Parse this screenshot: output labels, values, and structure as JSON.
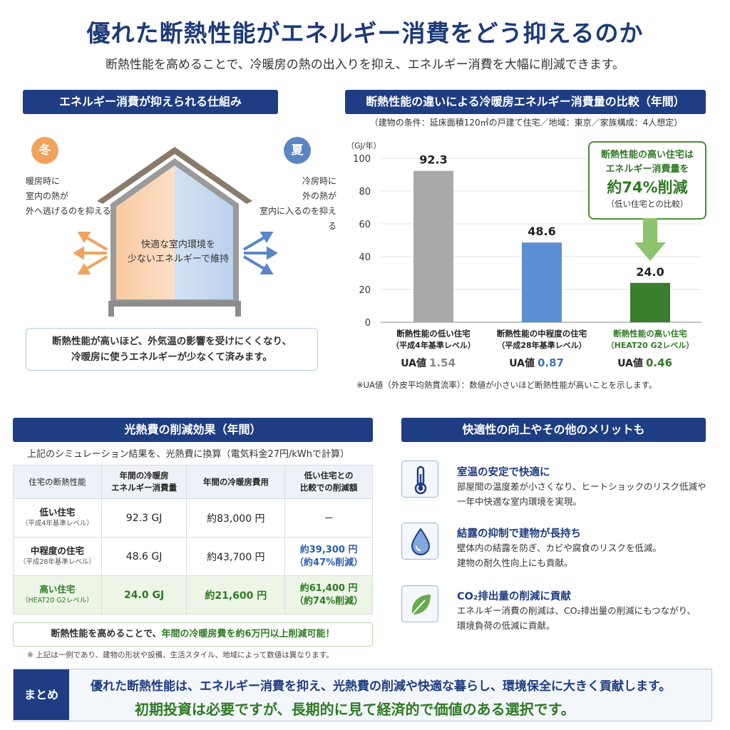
{
  "header": {
    "title": "優れた断熱性能がエネルギー消費をどう抑えるのか",
    "subtitle": "断熱性能を高めることで、冷暖房の熱の出入りを抑え、エネルギー消費を大幅に削減できます。"
  },
  "mechanism": {
    "heading": "エネルギー消費が抑えられる仕組み",
    "winter_badge": "冬",
    "summer_badge": "夏",
    "winter_note": [
      "暖房時に",
      "室内の熱が",
      "外へ逃げるのを抑える"
    ],
    "summer_note": [
      "冷房時に",
      "外の熱が",
      "室内に入るのを抑える"
    ],
    "house_text": [
      "快適な室内環境を",
      "少ないエネルギーで維持"
    ],
    "info": [
      "断熱性能が高いほど、外気温の影響を受けにくくなり、",
      "冷暖房に使うエネルギーが少なくて済みます。"
    ],
    "colors": {
      "winter": "#f0a35e",
      "summer": "#5a86c5"
    }
  },
  "comparison": {
    "heading": "断熱性能の違いによる冷暖房エネルギー消費量の比較（年間）",
    "conditions": "（建物の条件：延床面積120㎡の戸建て住宅／地域：東京／家族構成：4人想定）",
    "callout": {
      "line1": "断熱性能の高い住宅は",
      "line2": "エネルギー消費量を",
      "big": "約74%削減",
      "small": "（低い住宅との比較）"
    },
    "note": "※UA値（外皮平均熱貫流率）：数値が小さいほど断熱性能が高いことを示します。"
  },
  "chart_data": {
    "type": "bar",
    "ylabel": "（GJ/年）",
    "ylim": [
      0,
      100
    ],
    "yticks": [
      0,
      20,
      40,
      60,
      80,
      100
    ],
    "categories": [
      {
        "line1": "断熱性能の低い住宅",
        "line2": "（平成4年基準レベル）",
        "ua_label": "UA値",
        "ua": "1.54"
      },
      {
        "line1": "断熱性能の中程度の住宅",
        "line2": "（平成28年基準レベル）",
        "ua_label": "UA値",
        "ua": "0.87"
      },
      {
        "line1": "断熱性能の高い住宅",
        "line2": "（HEAT20 G2レベル）",
        "ua_label": "UA値",
        "ua": "0.46"
      }
    ],
    "values": [
      92.3,
      48.6,
      24.0
    ],
    "value_labels": [
      "92.3",
      "48.6",
      "24.0"
    ],
    "colors": [
      "#a9a9a9",
      "#5b8fd4",
      "#3a7d2c"
    ],
    "grid": true
  },
  "cost": {
    "heading": "光熱費の削減効果（年間）",
    "intro": "上記のシミュレーション結果を、光熱費に換算（電気料金27円/kWhで計算）",
    "columns": [
      "住宅の断熱性能",
      "年間の冷暖房\nエネルギー消費量",
      "年間の冷暖房費用",
      "低い住宅との\n比較での削減額"
    ],
    "rows": [
      {
        "name": "低い住宅",
        "sub": "（平成4年基準レベル）",
        "energy": "92.3 GJ",
        "cost": "約83,000 円",
        "saving": "－",
        "saving_pct": ""
      },
      {
        "name": "中程度の住宅",
        "sub": "（平成28年基準レベル）",
        "energy": "48.6 GJ",
        "cost": "約43,700 円",
        "saving": "約39,300 円",
        "saving_pct": "（約47%削減）"
      },
      {
        "name": "高い住宅",
        "sub": "（HEAT20 G2レベル）",
        "energy": "24.0 GJ",
        "cost": "約21,600 円",
        "saving": "約61,400 円",
        "saving_pct": "（約74%削減）"
      }
    ],
    "save_msg_a": "断熱性能を高めることで、",
    "save_msg_b": "年間の冷暖房費を約6万円以上削減可能！",
    "footnote": "※ 上記は一例であり、建物の形状や設備、生活スタイル、地域によって数値は異なります。"
  },
  "merits": {
    "heading": "快適性の向上やその他のメリットも",
    "items": [
      {
        "icon": "thermometer-icon",
        "title": "室温の安定で快適に",
        "desc": [
          "部屋間の温度差が小さくなり、ヒートショックのリスク低減や",
          "一年中快適な室内環境を実現。"
        ]
      },
      {
        "icon": "water-drop-icon",
        "title": "結露の抑制で建物が長持ち",
        "desc": [
          "壁体内の結露を防ぎ、カビや腐食のリスクを低減。",
          "建物の耐久性向上にも貢献。"
        ]
      },
      {
        "icon": "leaf-icon",
        "title": "CO₂排出量の削減に貢献",
        "desc": [
          "エネルギー消費の削減は、CO₂排出量の削減にもつながり、",
          "環境負荷の低減に貢献。"
        ]
      }
    ]
  },
  "summary": {
    "tag": "まとめ",
    "line1": "優れた断熱性能は、エネルギー消費を抑え、光熱費の削減や快適な暮らし、環境保全に大きく貢献します。",
    "line2": "初期投資は必要ですが、長期的に見て経済的で価値のある選択です。"
  }
}
